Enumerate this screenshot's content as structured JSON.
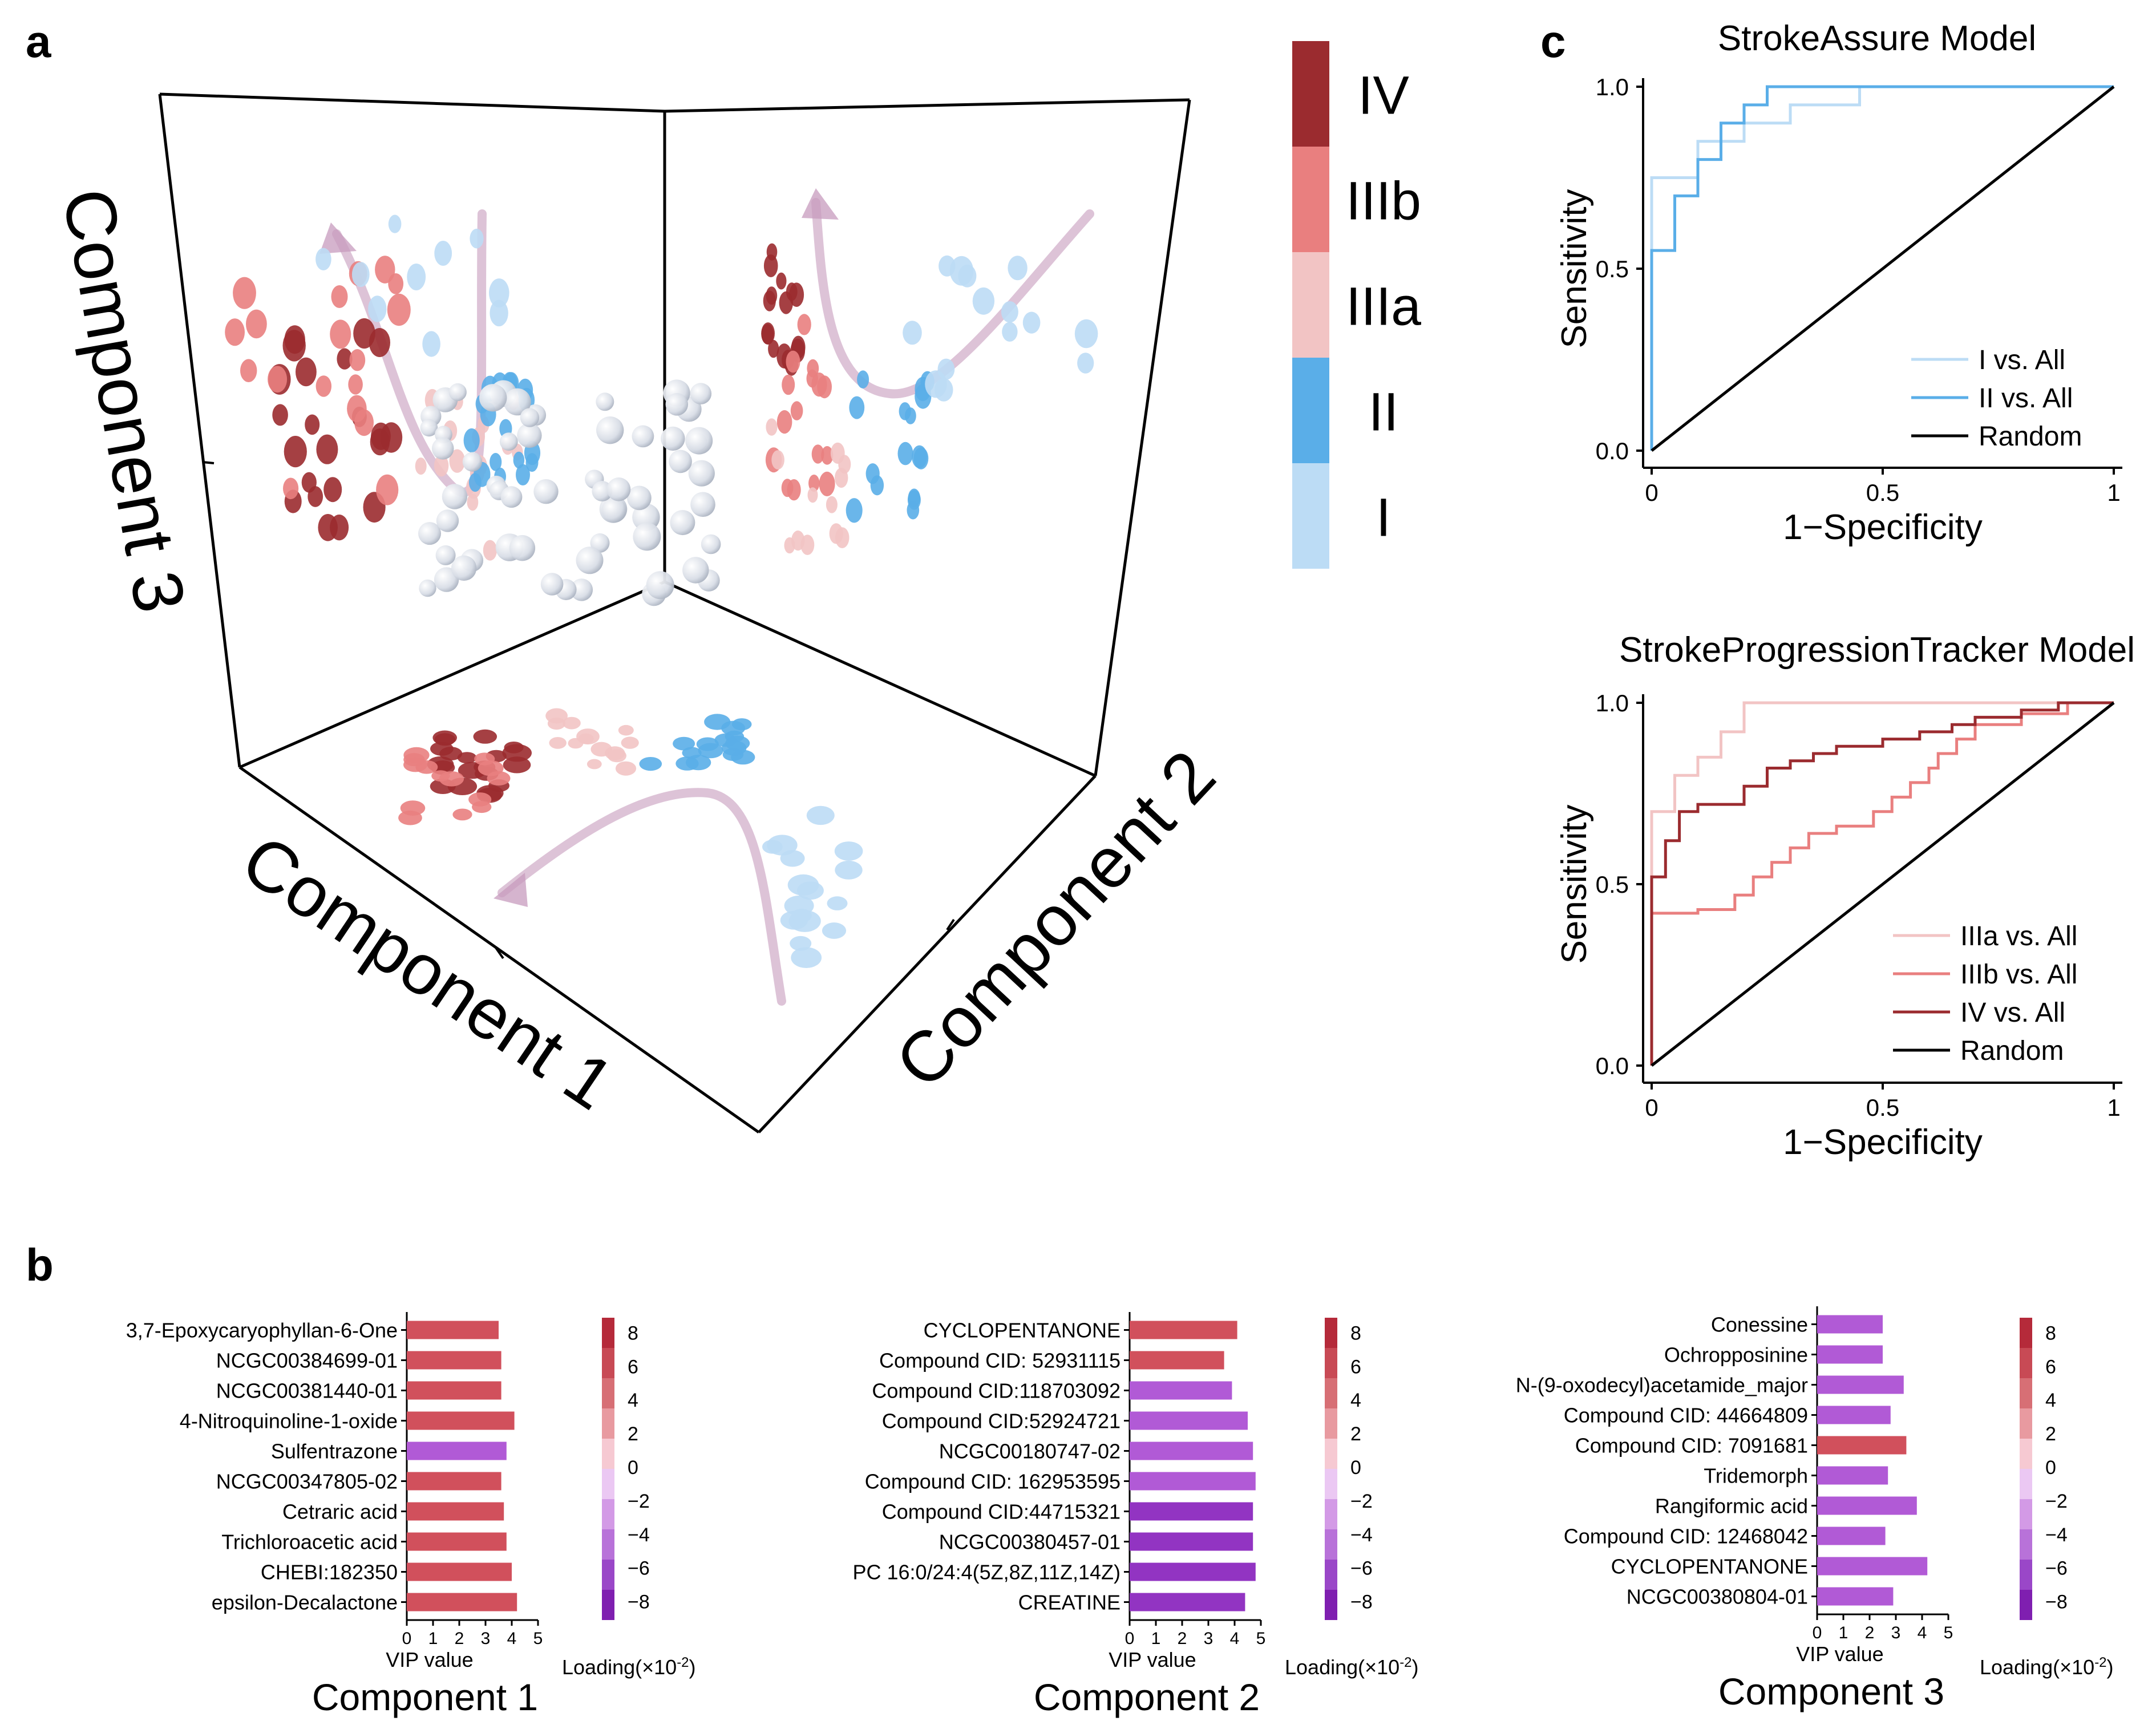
{
  "panels": {
    "a": "a",
    "b": "b",
    "c": "c"
  },
  "colors": {
    "I": "#bcdcf5",
    "II": "#5aaee8",
    "IIIa": "#f2c4c4",
    "IIIb": "#e97f7f",
    "IV": "#9b2b2f",
    "neutral": "#e6e9ef",
    "arrow": "#c79bbd",
    "axis": "#000000"
  },
  "chart_data": [
    {
      "id": "pca3d",
      "type": "scatter",
      "title": "",
      "axes": {
        "x": "Component 1",
        "y": "Component 2",
        "z": "Component 3"
      },
      "legend": {
        "position": "right",
        "entries": [
          {
            "label": "IV",
            "color": "#9b2b2f"
          },
          {
            "label": "IIIb",
            "color": "#e97f7f"
          },
          {
            "label": "IIIa",
            "color": "#f2c4c4"
          },
          {
            "label": "II",
            "color": "#5aaee8"
          },
          {
            "label": "I",
            "color": "#bcdcf5"
          }
        ]
      }
    },
    {
      "id": "vip1",
      "type": "bar",
      "title": "Component 1",
      "xlabel": "VIP value",
      "xlim": [
        0,
        5
      ],
      "xticks": [
        "0",
        "1",
        "2",
        "3",
        "4",
        "5"
      ],
      "categories": [
        "3,7-Epoxycaryophyllan-6-One",
        "NCGC00384699-01",
        "NCGC00381440-01",
        "4-Nitroquinoline-1-oxide",
        "Sulfentrazone",
        "NCGC00347805-02",
        "Cetraric acid",
        "Trichloroacetic acid",
        "CHEBI:182350",
        "epsilon-Decalactone"
      ],
      "values": [
        3.5,
        3.6,
        3.6,
        4.1,
        3.8,
        3.6,
        3.7,
        3.8,
        4.0,
        4.2
      ],
      "loadings": [
        5,
        5,
        5,
        5,
        -5,
        5,
        5,
        5,
        5,
        5
      ],
      "colorbar": {
        "label": "Loading(×10",
        "exponent": "-2",
        "label_end": ")",
        "ticks": [
          "8",
          "6",
          "4",
          "2",
          "0",
          "−2",
          "−4",
          "−6",
          "−8"
        ]
      }
    },
    {
      "id": "vip2",
      "type": "bar",
      "title": "Component 2",
      "xlabel": "VIP value",
      "xlim": [
        0,
        5
      ],
      "xticks": [
        "0",
        "1",
        "2",
        "3",
        "4",
        "5"
      ],
      "categories": [
        "CYCLOPENTANONE",
        "Compound CID: 52931115",
        "Compound CID:118703092",
        "Compound CID:52924721",
        "NCGC00180747-02",
        "Compound CID: 162953595",
        "Compound CID:44715321",
        "NCGC00380457-01",
        "PC 16:0/24:4(5Z,8Z,11Z,14Z)",
        "CREATINE"
      ],
      "values": [
        4.1,
        3.6,
        3.9,
        4.5,
        4.7,
        4.8,
        4.7,
        4.7,
        4.8,
        4.4
      ],
      "loadings": [
        5,
        5,
        -5,
        -5,
        -5,
        -5,
        -7,
        -7,
        -7,
        -7
      ],
      "colorbar": {
        "label": "Loading(×10",
        "exponent": "-2",
        "label_end": ")",
        "ticks": [
          "8",
          "6",
          "4",
          "2",
          "0",
          "−2",
          "−4",
          "−6",
          "−8"
        ]
      }
    },
    {
      "id": "vip3",
      "type": "bar",
      "title": "Component 3",
      "xlabel": "VIP value",
      "xlim": [
        0,
        5
      ],
      "xticks": [
        "0",
        "1",
        "2",
        "3",
        "4",
        "5"
      ],
      "categories": [
        "Conessine",
        "Ochropposinine",
        "N-(9-oxodecyl)acetamide_major",
        "Compound CID: 44664809",
        "Compound CID: 7091681",
        "Tridemorph",
        "Rangiformic acid",
        "Compound CID: 12468042",
        "CYCLOPENTANONE",
        "NCGC00380804-01"
      ],
      "values": [
        2.5,
        2.5,
        3.3,
        2.8,
        3.4,
        2.7,
        3.8,
        2.6,
        4.2,
        2.9
      ],
      "loadings": [
        -5,
        -5,
        -5,
        -5,
        5,
        -5,
        -5,
        -5,
        -5,
        -5
      ],
      "colorbar": {
        "label": "Loading(×10",
        "exponent": "-2",
        "label_end": ")",
        "ticks": [
          "8",
          "6",
          "4",
          "2",
          "0",
          "−2",
          "−4",
          "−6",
          "−8"
        ]
      }
    },
    {
      "id": "roc1",
      "type": "line",
      "title": "StrokeAssure Model",
      "xlabel": "1−Specificity",
      "ylabel": "Sensitivity",
      "xlim": [
        0,
        1
      ],
      "ylim": [
        0,
        1
      ],
      "xticks": [
        "0",
        "0.5",
        "1"
      ],
      "yticks": [
        "0.0",
        "0.5",
        "1.0"
      ],
      "series": [
        {
          "name": "I vs. All",
          "color": "#bcdcf5",
          "x": [
            0,
            0,
            0.1,
            0.1,
            0.2,
            0.2,
            0.3,
            0.3,
            0.45,
            0.45,
            1
          ],
          "y": [
            0,
            0.75,
            0.75,
            0.85,
            0.85,
            0.9,
            0.9,
            0.95,
            0.95,
            1,
            1
          ]
        },
        {
          "name": "II vs. All",
          "color": "#5aaee8",
          "x": [
            0,
            0,
            0.05,
            0.05,
            0.1,
            0.1,
            0.15,
            0.15,
            0.2,
            0.2,
            0.25,
            0.25,
            1
          ],
          "y": [
            0,
            0.55,
            0.55,
            0.7,
            0.7,
            0.8,
            0.8,
            0.9,
            0.9,
            0.95,
            0.95,
            1,
            1
          ]
        },
        {
          "name": "Random",
          "color": "#000000",
          "x": [
            0,
            1
          ],
          "y": [
            0,
            1
          ]
        }
      ]
    },
    {
      "id": "roc2",
      "type": "line",
      "title": "StrokeProgressionTracker Model",
      "xlabel": "1−Specificity",
      "ylabel": "Sensitivity",
      "xlim": [
        0,
        1
      ],
      "ylim": [
        0,
        1
      ],
      "xticks": [
        "0",
        "0.5",
        "1"
      ],
      "yticks": [
        "0.0",
        "0.5",
        "1.0"
      ],
      "series": [
        {
          "name": "IIIa vs. All",
          "color": "#f2c4c4",
          "x": [
            0,
            0,
            0.05,
            0.05,
            0.1,
            0.1,
            0.15,
            0.15,
            0.2,
            0.2,
            1
          ],
          "y": [
            0,
            0.7,
            0.7,
            0.8,
            0.8,
            0.85,
            0.85,
            0.92,
            0.92,
            1,
            1
          ]
        },
        {
          "name": "IIIb vs. All",
          "color": "#e97f7f",
          "x": [
            0,
            0,
            0.1,
            0.1,
            0.18,
            0.18,
            0.22,
            0.22,
            0.26,
            0.26,
            0.3,
            0.3,
            0.34,
            0.34,
            0.4,
            0.4,
            0.48,
            0.48,
            0.52,
            0.52,
            0.56,
            0.56,
            0.6,
            0.6,
            0.62,
            0.62,
            0.66,
            0.66,
            0.7,
            0.7,
            0.8,
            0.8,
            0.9,
            0.9,
            1
          ],
          "y": [
            0,
            0.42,
            0.42,
            0.43,
            0.43,
            0.47,
            0.47,
            0.52,
            0.52,
            0.56,
            0.56,
            0.6,
            0.6,
            0.64,
            0.64,
            0.66,
            0.66,
            0.7,
            0.7,
            0.74,
            0.74,
            0.78,
            0.78,
            0.82,
            0.82,
            0.86,
            0.86,
            0.9,
            0.9,
            0.94,
            0.94,
            0.97,
            0.97,
            1,
            1
          ]
        },
        {
          "name": "IV vs. All",
          "color": "#9b2b2f",
          "x": [
            0,
            0,
            0.03,
            0.03,
            0.06,
            0.06,
            0.1,
            0.1,
            0.15,
            0.15,
            0.2,
            0.2,
            0.25,
            0.25,
            0.3,
            0.3,
            0.35,
            0.35,
            0.4,
            0.4,
            0.5,
            0.5,
            0.58,
            0.58,
            0.65,
            0.65,
            0.7,
            0.7,
            0.8,
            0.8,
            0.88,
            0.88,
            1
          ],
          "y": [
            0,
            0.52,
            0.52,
            0.62,
            0.62,
            0.7,
            0.7,
            0.72,
            0.72,
            0.72,
            0.72,
            0.77,
            0.77,
            0.82,
            0.82,
            0.84,
            0.84,
            0.86,
            0.86,
            0.88,
            0.88,
            0.9,
            0.9,
            0.92,
            0.92,
            0.94,
            0.94,
            0.96,
            0.96,
            0.98,
            0.98,
            1,
            1
          ]
        },
        {
          "name": "Random",
          "color": "#000000",
          "x": [
            0,
            1
          ],
          "y": [
            0,
            1
          ]
        }
      ]
    }
  ]
}
